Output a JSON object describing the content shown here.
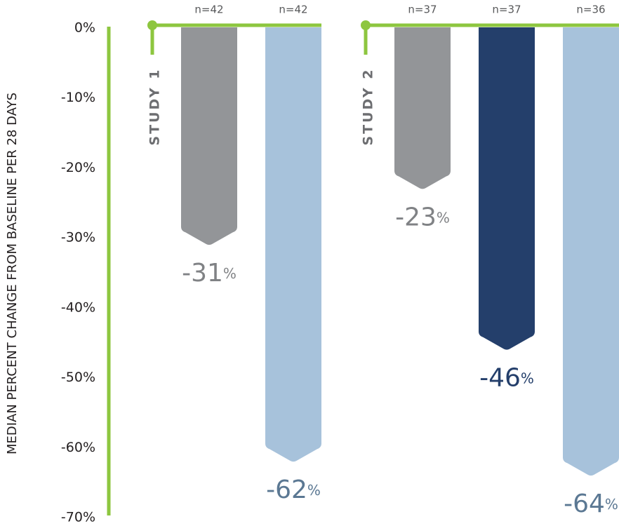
{
  "chart_data": {
    "type": "bar",
    "ylabel": "MEDIAN PERCENT CHANGE FROM BASELINE PER 28 DAYS",
    "ylim": [
      -70,
      0
    ],
    "yticks": [
      {
        "value": 0,
        "label": "0%"
      },
      {
        "value": -10,
        "label": "-10%"
      },
      {
        "value": -20,
        "label": "-20%"
      },
      {
        "value": -30,
        "label": "-30%"
      },
      {
        "value": -40,
        "label": "-40%"
      },
      {
        "value": -50,
        "label": "-50%"
      },
      {
        "value": -60,
        "label": "-60%"
      },
      {
        "value": -70,
        "label": "-70%"
      }
    ],
    "axis_color": "#8dc63f",
    "groups": [
      {
        "name": "STUDY 1",
        "n_labels": [
          "n=42",
          "n=42"
        ],
        "values": [
          -31,
          -62
        ],
        "value_labels": [
          "-31%",
          "-62%"
        ],
        "colors": [
          "#939598",
          "#a7c2db"
        ],
        "label_colors": [
          "#808285",
          "#5b7893"
        ]
      },
      {
        "name": "STUDY 2",
        "n_labels": [
          "n=37",
          "n=37",
          "n=36"
        ],
        "values": [
          -23,
          -46,
          -64
        ],
        "value_labels": [
          "-23%",
          "-46%",
          "-64%"
        ],
        "colors": [
          "#939598",
          "#243f6b",
          "#a7c2db"
        ],
        "label_colors": [
          "#808285",
          "#243f6b",
          "#5b7893"
        ]
      }
    ]
  }
}
